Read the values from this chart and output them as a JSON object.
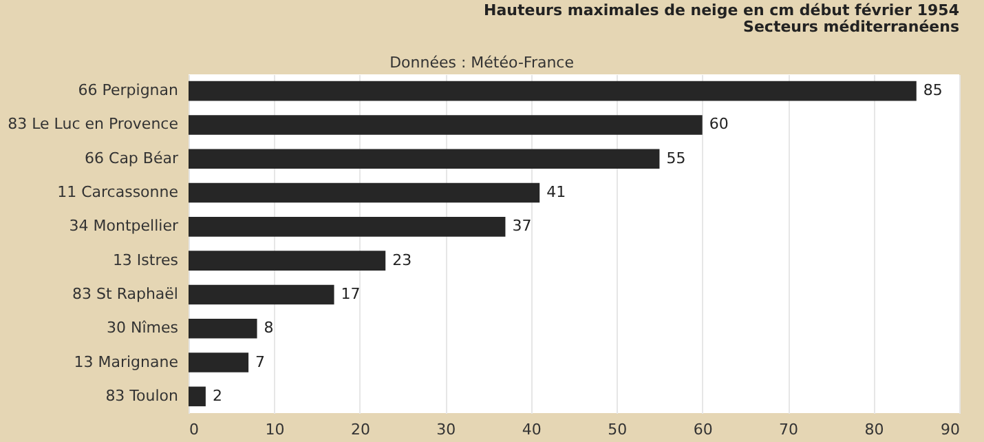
{
  "chart_data": {
    "type": "bar",
    "orientation": "horizontal",
    "title": "Hauteurs maximales de neige en cm début février 1954",
    "subtitle": "Secteurs méditerranéens",
    "annotations": [
      "Données : Météo-France"
    ],
    "categories": [
      "66 Perpignan",
      "83 Le Luc en Provence",
      "66 Cap Béar",
      "11 Carcassonne",
      "34 Montpellier",
      "13 Istres",
      "83 St Raphaël",
      "30 Nîmes",
      "13 Marignane",
      "83 Toulon"
    ],
    "values": [
      85,
      60,
      55,
      41,
      37,
      23,
      17,
      8,
      7,
      2
    ],
    "color": "#262626",
    "xlim": [
      0,
      90
    ],
    "xticks": [
      0,
      10,
      20,
      30,
      40,
      50,
      60,
      70,
      80,
      90
    ],
    "grid": "x",
    "data_labels": true
  }
}
